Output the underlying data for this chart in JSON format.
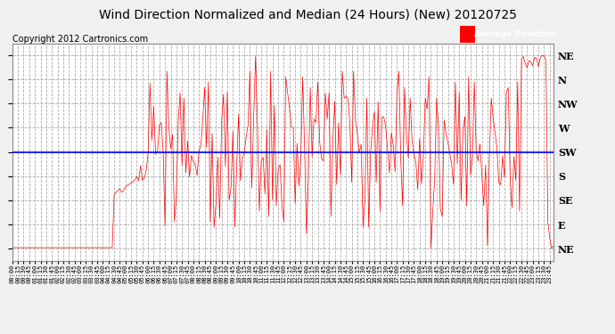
{
  "title": "Wind Direction Normalized and Median (24 Hours) (New) 20120725",
  "copyright_text": "Copyright 2012 Cartronics.com",
  "legend_label": "Average Direction",
  "legend_bg": "#0000cc",
  "ytick_labels": [
    "NE",
    "E",
    "SE",
    "S",
    "SW",
    "W",
    "NW",
    "N",
    "NE"
  ],
  "ytick_values": [
    0,
    45,
    90,
    135,
    180,
    225,
    270,
    315,
    360
  ],
  "ylim": [
    -22,
    382
  ],
  "blue_line_y": 180,
  "background_color": "#f0f0f0",
  "plot_bg": "#ffffff",
  "grid_color": "#aaaaaa",
  "line_color": "#ff0000",
  "title_fontsize": 10,
  "copyright_fontsize": 7,
  "n_points": 288
}
